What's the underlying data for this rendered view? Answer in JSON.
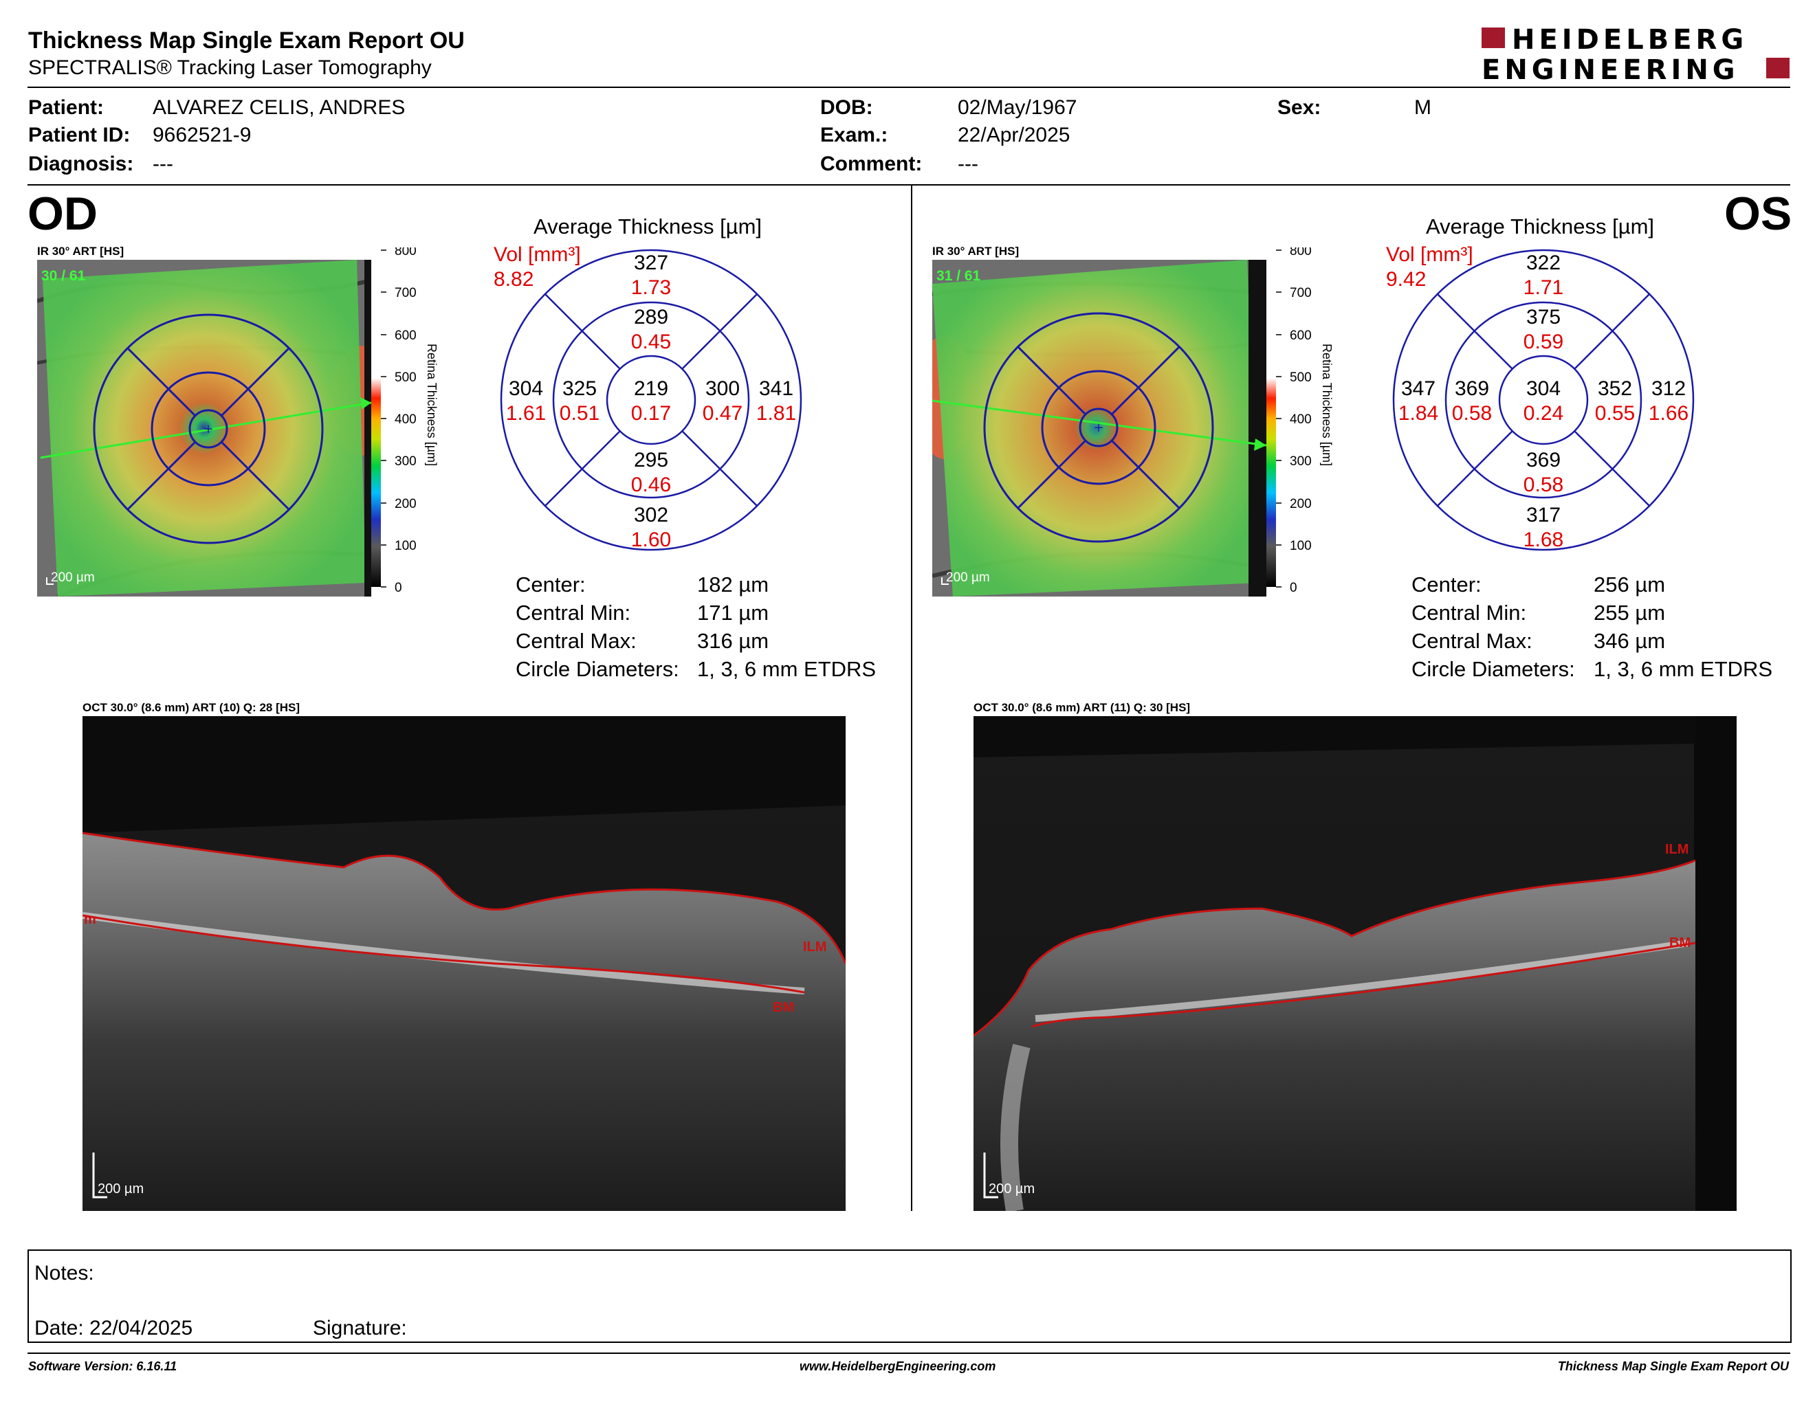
{
  "header": {
    "title": "Thickness Map Single Exam Report OU",
    "subtitle": "SPECTRALIS® Tracking Laser Tomography",
    "logo_line1": "HEIDELBERG",
    "logo_line2": "ENGINEERING"
  },
  "patient": {
    "patient_label": "Patient:",
    "patient_value": "ALVAREZ CELIS, ANDRES",
    "id_label": "Patient ID:",
    "id_value": "9662521-9",
    "diagnosis_label": "Diagnosis:",
    "diagnosis_value": "---",
    "dob_label": "DOB:",
    "dob_value": "02/May/1967",
    "exam_label": "Exam.:",
    "exam_value": "22/Apr/2025",
    "comment_label": "Comment:",
    "comment_value": "---",
    "sex_label": "Sex:",
    "sex_value": "M"
  },
  "od": {
    "eye": "OD",
    "ir_title": "IR 30° ART [HS]",
    "ir_count": "30 / 61",
    "scale_label": "200 µm",
    "colorbar_ticks": [
      "800",
      "700",
      "600",
      "500",
      "400",
      "300",
      "200",
      "100",
      "0"
    ],
    "colorbar_title": "Retina Thickness [µm]",
    "avg_title": "Average Thickness [µm]",
    "vol_label": "Vol [mm³]",
    "vol_value": "8.82",
    "sectors": {
      "center": {
        "t": "219",
        "v": "0.17"
      },
      "inner_sup": {
        "t": "289",
        "v": "0.45"
      },
      "inner_inf": {
        "t": "295",
        "v": "0.46"
      },
      "inner_left": {
        "t": "325",
        "v": "0.51"
      },
      "inner_right": {
        "t": "300",
        "v": "0.47"
      },
      "outer_sup": {
        "t": "327",
        "v": "1.73"
      },
      "outer_inf": {
        "t": "302",
        "v": "1.60"
      },
      "outer_left": {
        "t": "304",
        "v": "1.61"
      },
      "outer_right": {
        "t": "341",
        "v": "1.81"
      }
    },
    "stats": [
      {
        "label": "Center:",
        "value": "182 µm"
      },
      {
        "label": "Central Min:",
        "value": "171 µm"
      },
      {
        "label": "Central Max:",
        "value": "316 µm"
      },
      {
        "label": "Circle Diameters:",
        "value": "1, 3, 6 mm ETDRS"
      }
    ],
    "oct_title": "OCT 30.0° (8.6 mm) ART (10) Q: 28 [HS]",
    "oct_labels": {
      "ilm": "ILM",
      "bm": "BM",
      "left": "m"
    },
    "oct_scale": "200 µm"
  },
  "os": {
    "eye": "OS",
    "ir_title": "IR 30° ART [HS]",
    "ir_count": "31 / 61",
    "scale_label": "200 µm",
    "colorbar_ticks": [
      "800",
      "700",
      "600",
      "500",
      "400",
      "300",
      "200",
      "100",
      "0"
    ],
    "colorbar_title": "Retina Thickness [µm]",
    "avg_title": "Average Thickness [µm]",
    "vol_label": "Vol [mm³]",
    "vol_value": "9.42",
    "sectors": {
      "center": {
        "t": "304",
        "v": "0.24"
      },
      "inner_sup": {
        "t": "375",
        "v": "0.59"
      },
      "inner_inf": {
        "t": "369",
        "v": "0.58"
      },
      "inner_left": {
        "t": "369",
        "v": "0.58"
      },
      "inner_right": {
        "t": "352",
        "v": "0.55"
      },
      "outer_sup": {
        "t": "322",
        "v": "1.71"
      },
      "outer_inf": {
        "t": "317",
        "v": "1.68"
      },
      "outer_left": {
        "t": "347",
        "v": "1.84"
      },
      "outer_right": {
        "t": "312",
        "v": "1.66"
      }
    },
    "stats": [
      {
        "label": "Center:",
        "value": "256 µm"
      },
      {
        "label": "Central Min:",
        "value": "255 µm"
      },
      {
        "label": "Central Max:",
        "value": "346 µm"
      },
      {
        "label": "Circle Diameters:",
        "value": "1, 3, 6 mm ETDRS"
      }
    ],
    "oct_title": "OCT 30.0° (8.6 mm) ART (11) Q: 30 [HS]",
    "oct_labels": {
      "ilm": "ILM",
      "bm": "BM"
    },
    "oct_scale": "200 µm"
  },
  "notes": {
    "notes_label": "Notes:",
    "date_label": "Date: 22/04/2025",
    "signature_label": "Signature:"
  },
  "footer": {
    "left": "Software Version: 6.16.11",
    "center": "www.HeidelbergEngineering.com",
    "right": "Thickness Map Single Exam Report OU"
  },
  "colors": {
    "red_values": "#e00000",
    "etdrs_lines": "#1a1aa6",
    "boundary_red": "#cc1111",
    "logo_red": "#a3192c"
  }
}
